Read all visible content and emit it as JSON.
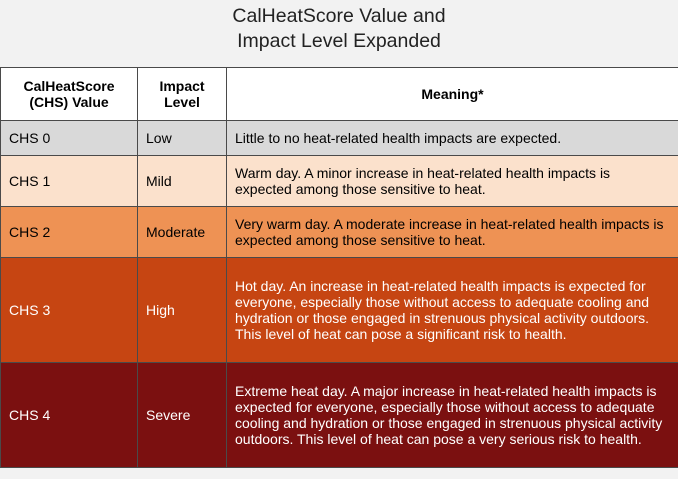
{
  "title": [
    "CalHeatScore Value and",
    "Impact Level Expanded"
  ],
  "table": {
    "headers": [
      "CalHeatScore (CHS) Value",
      "Impact Level",
      "Meaning*"
    ],
    "rows": [
      {
        "chs": "CHS 0",
        "level": "Low",
        "meaning": "Little to no heat-related health impacts are expected.",
        "bg": "#d9d9d9",
        "fg": "#000000"
      },
      {
        "chs": "CHS 1",
        "level": "Mild",
        "meaning": "Warm day. A minor increase in heat-related health impacts is expected among those sensitive to heat.",
        "bg": "#fbe1cc",
        "fg": "#000000"
      },
      {
        "chs": "CHS 2",
        "level": "Moderate",
        "meaning": "Very warm day. A moderate increase in heat-related health impacts is expected among those sensitive to heat.",
        "bg": "#ee9254",
        "fg": "#000000"
      },
      {
        "chs": "CHS 3",
        "level": "High",
        "meaning": "Hot day. An increase in heat-related health impacts is expected for everyone, especially those without access to adequate cooling and hydration or those engaged in strenuous physical activity outdoors. This level of heat can pose a significant risk to health.",
        "bg": "#c64512",
        "fg": "#ffffff"
      },
      {
        "chs": "CHS 4",
        "level": "Severe",
        "meaning": "Extreme heat day. A major increase in heat-related health impacts is expected for everyone, especially those without access to adequate cooling and hydration or those engaged in strenuous physical activity outdoors. This level of heat can pose a very serious risk to health.",
        "bg": "#7b1010",
        "fg": "#ffffff"
      }
    ]
  }
}
